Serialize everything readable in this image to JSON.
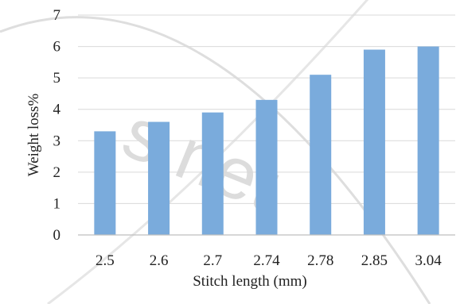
{
  "chart_data": {
    "type": "bar",
    "categories": [
      "2.5",
      "2.6",
      "2.7",
      "2.74",
      "2.78",
      "2.85",
      "3.04"
    ],
    "values": [
      3.3,
      3.6,
      3.9,
      4.3,
      5.1,
      5.9,
      6.0
    ],
    "xlabel": "Stitch length (mm)",
    "ylabel": "Weight loss%",
    "ylim": [
      0,
      7
    ],
    "yticks": [
      "0",
      "1",
      "2",
      "3",
      "4",
      "5",
      "6",
      "7"
    ],
    "grid": true,
    "legend": "none",
    "bar_color": "#7aabdc",
    "grid_color": "#d9d9d9",
    "axis_color": "#bfbfbf"
  },
  "watermark": {
    "text": "s.net",
    "color": "#dcdcdc"
  }
}
